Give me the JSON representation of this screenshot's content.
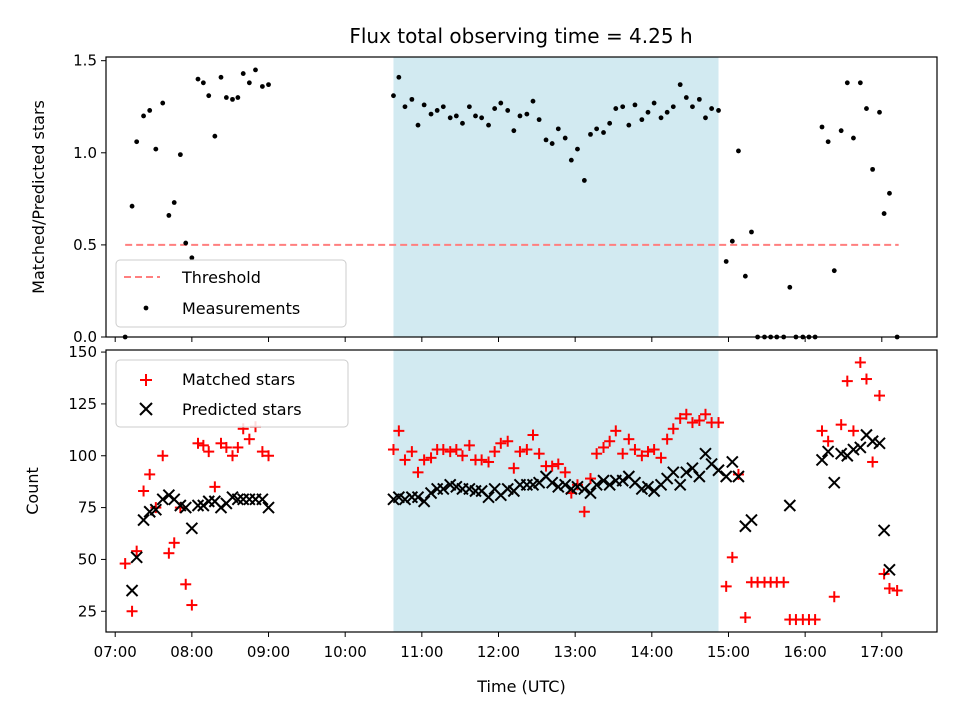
{
  "chart_data": [
    {
      "type": "scatter",
      "title": "Flux total observing time = 4.25 h",
      "ylabel": "Matched/Predicted stars",
      "xlabel": "",
      "ylim": [
        0,
        1.52
      ],
      "yticks": [
        0.0,
        0.5,
        1.0,
        1.5
      ],
      "ytick_labels": [
        "0.0",
        "0.5",
        "1.0",
        "1.5"
      ],
      "xlim": [
        6.88,
        17.72
      ],
      "shaded_interval_hours": [
        10.63,
        14.87
      ],
      "shade_color": "#add8e6",
      "legend_position": "lower left",
      "threshold": {
        "name": "Threshold",
        "value": 0.5,
        "x_range": [
          7.13,
          17.22
        ],
        "color": "#ff7f7f",
        "style": "dashed"
      },
      "series": [
        {
          "name": "Measurements",
          "color": "#000000",
          "marker": "dot",
          "x": [
            7.13,
            7.22,
            7.28,
            7.37,
            7.45,
            7.53,
            7.62,
            7.7,
            7.77,
            7.85,
            7.92,
            8.0,
            8.08,
            8.15,
            8.22,
            8.3,
            8.38,
            8.45,
            8.53,
            8.6,
            8.67,
            8.75,
            8.83,
            8.92,
            9.0,
            10.63,
            10.7,
            10.78,
            10.87,
            10.95,
            11.03,
            11.12,
            11.2,
            11.28,
            11.37,
            11.45,
            11.53,
            11.62,
            11.7,
            11.78,
            11.87,
            11.95,
            12.03,
            12.12,
            12.2,
            12.28,
            12.37,
            12.45,
            12.53,
            12.62,
            12.7,
            12.78,
            12.87,
            12.95,
            13.03,
            13.12,
            13.2,
            13.28,
            13.37,
            13.45,
            13.53,
            13.62,
            13.7,
            13.78,
            13.87,
            13.95,
            14.03,
            14.12,
            14.2,
            14.28,
            14.37,
            14.45,
            14.53,
            14.62,
            14.7,
            14.78,
            14.87,
            14.97,
            15.05,
            15.13,
            15.22,
            15.3,
            15.38,
            15.47,
            15.55,
            15.63,
            15.72,
            15.8,
            15.88,
            15.97,
            16.05,
            16.13,
            16.22,
            16.3,
            16.38,
            16.47,
            16.55,
            16.63,
            16.72,
            16.8,
            16.88,
            16.97,
            17.03,
            17.1,
            17.2
          ],
          "y": [
            0.0,
            0.71,
            1.06,
            1.2,
            1.23,
            1.02,
            1.27,
            0.66,
            0.73,
            0.99,
            0.51,
            0.43,
            1.4,
            1.38,
            1.31,
            1.09,
            1.41,
            1.3,
            1.29,
            1.3,
            1.43,
            1.38,
            1.45,
            1.36,
            1.37,
            1.31,
            1.41,
            1.25,
            1.29,
            1.15,
            1.26,
            1.21,
            1.23,
            1.25,
            1.19,
            1.2,
            1.16,
            1.25,
            1.2,
            1.19,
            1.15,
            1.24,
            1.27,
            1.23,
            1.12,
            1.2,
            1.21,
            1.28,
            1.18,
            1.07,
            1.05,
            1.13,
            1.08,
            0.96,
            1.02,
            0.85,
            1.1,
            1.13,
            1.11,
            1.16,
            1.24,
            1.25,
            1.15,
            1.26,
            1.18,
            1.22,
            1.27,
            1.19,
            1.22,
            1.25,
            1.37,
            1.3,
            1.25,
            1.29,
            1.19,
            1.24,
            1.23,
            0.41,
            0.52,
            1.01,
            0.33,
            0.57,
            0.0,
            0.0,
            0.0,
            0.0,
            0.0,
            0.27,
            0.0,
            0.0,
            0.0,
            0.0,
            1.14,
            1.06,
            0.36,
            1.12,
            1.38,
            1.08,
            1.38,
            1.24,
            0.91,
            1.22,
            0.67,
            0.78,
            0.0
          ]
        }
      ]
    },
    {
      "type": "scatter",
      "title": "",
      "ylabel": "Count",
      "xlabel": "Time (UTC)",
      "ylim": [
        15,
        151
      ],
      "yticks": [
        25,
        50,
        75,
        100,
        125,
        150
      ],
      "ytick_labels": [
        "25",
        "50",
        "75",
        "100",
        "125",
        "150"
      ],
      "xlim": [
        6.88,
        17.72
      ],
      "xticks": [
        7,
        8,
        9,
        10,
        11,
        12,
        13,
        14,
        15,
        16,
        17
      ],
      "xtick_labels": [
        "07:00",
        "08:00",
        "09:00",
        "10:00",
        "11:00",
        "12:00",
        "13:00",
        "14:00",
        "15:00",
        "16:00",
        "17:00"
      ],
      "shaded_interval_hours": [
        10.63,
        14.87
      ],
      "legend_position": "upper left",
      "series": [
        {
          "name": "Matched stars",
          "color": "#ff0000",
          "marker": "plus",
          "x": [
            7.13,
            7.22,
            7.28,
            7.37,
            7.45,
            7.53,
            7.62,
            7.7,
            7.77,
            7.85,
            7.92,
            8.0,
            8.08,
            8.15,
            8.22,
            8.3,
            8.38,
            8.45,
            8.53,
            8.6,
            8.67,
            8.75,
            8.83,
            8.92,
            9.0,
            10.63,
            10.7,
            10.78,
            10.87,
            10.95,
            11.03,
            11.12,
            11.2,
            11.28,
            11.37,
            11.45,
            11.53,
            11.62,
            11.7,
            11.78,
            11.87,
            11.95,
            12.03,
            12.12,
            12.2,
            12.28,
            12.37,
            12.45,
            12.53,
            12.62,
            12.7,
            12.78,
            12.87,
            12.95,
            13.03,
            13.12,
            13.2,
            13.28,
            13.37,
            13.45,
            13.53,
            13.62,
            13.7,
            13.78,
            13.87,
            13.95,
            14.03,
            14.12,
            14.2,
            14.28,
            14.37,
            14.45,
            14.53,
            14.62,
            14.7,
            14.78,
            14.87,
            14.97,
            15.05,
            15.13,
            15.22,
            15.3,
            15.38,
            15.47,
            15.55,
            15.63,
            15.72,
            15.8,
            15.88,
            15.97,
            16.05,
            16.13,
            16.22,
            16.3,
            16.38,
            16.47,
            16.55,
            16.63,
            16.72,
            16.8,
            16.88,
            16.97,
            17.03,
            17.1,
            17.2
          ],
          "y": [
            48,
            25,
            54,
            83,
            91,
            75,
            100,
            53,
            58,
            75,
            38,
            28,
            106,
            105,
            102,
            85,
            106,
            104,
            100,
            104,
            113,
            108,
            114,
            102,
            100,
            103,
            112,
            98,
            102,
            92,
            98,
            99,
            103,
            103,
            102,
            103,
            100,
            105,
            98,
            98,
            97,
            102,
            106,
            107,
            94,
            102,
            103,
            110,
            101,
            95,
            95,
            96,
            92,
            82,
            86,
            73,
            89,
            101,
            104,
            107,
            112,
            101,
            108,
            103,
            100,
            102,
            103,
            99,
            108,
            113,
            118,
            120,
            116,
            117,
            120,
            116,
            116,
            37,
            51,
            91,
            22,
            39,
            39,
            39,
            39,
            39,
            39,
            21,
            21,
            21,
            21,
            21,
            112,
            107,
            32,
            115,
            136,
            112,
            145,
            137,
            97,
            129,
            43,
            36,
            35
          ]
        },
        {
          "name": "Predicted stars",
          "color": "#000000",
          "marker": "x",
          "x": [
            7.13,
            7.22,
            7.28,
            7.37,
            7.45,
            7.53,
            7.62,
            7.7,
            7.77,
            7.85,
            7.92,
            8.0,
            8.08,
            8.15,
            8.22,
            8.3,
            8.38,
            8.45,
            8.53,
            8.6,
            8.67,
            8.75,
            8.83,
            8.92,
            9.0,
            10.63,
            10.7,
            10.78,
            10.87,
            10.95,
            11.03,
            11.12,
            11.2,
            11.28,
            11.37,
            11.45,
            11.53,
            11.62,
            11.7,
            11.78,
            11.87,
            11.95,
            12.03,
            12.12,
            12.2,
            12.28,
            12.37,
            12.45,
            12.53,
            12.62,
            12.7,
            12.78,
            12.87,
            12.95,
            13.03,
            13.12,
            13.2,
            13.28,
            13.37,
            13.45,
            13.53,
            13.62,
            13.7,
            13.78,
            13.87,
            13.95,
            14.03,
            14.12,
            14.2,
            14.28,
            14.37,
            14.45,
            14.53,
            14.62,
            14.7,
            14.78,
            14.87,
            14.97,
            15.05,
            15.13,
            15.22,
            15.3,
            15.38,
            15.47,
            15.55,
            15.63,
            15.72,
            15.8,
            15.88,
            15.97,
            16.05,
            16.13,
            16.22,
            16.3,
            16.38,
            16.47,
            16.55,
            16.63,
            16.72,
            16.8,
            16.88,
            16.97,
            17.03,
            17.1,
            17.2
          ],
          "y": [
            null,
            35,
            51,
            69,
            73,
            74,
            79,
            81,
            79,
            76,
            75,
            65,
            76,
            76,
            78,
            78,
            75,
            77,
            80,
            79,
            79,
            79,
            79,
            79,
            75,
            79,
            80,
            79,
            80,
            80,
            78,
            82,
            84,
            84,
            86,
            85,
            84,
            84,
            83,
            83,
            80,
            84,
            81,
            84,
            83,
            86,
            86,
            86,
            87,
            90,
            87,
            85,
            86,
            84,
            85,
            84,
            82,
            86,
            88,
            86,
            88,
            88,
            90,
            87,
            84,
            85,
            83,
            86,
            89,
            92,
            86,
            92,
            94,
            90,
            101,
            96,
            93,
            90,
            97,
            90,
            66,
            69,
            null,
            null,
            null,
            null,
            null,
            76,
            null,
            null,
            null,
            null,
            98,
            102,
            87,
            101,
            100,
            103,
            104,
            110,
            107,
            106,
            64,
            45,
            null
          ]
        }
      ]
    }
  ]
}
